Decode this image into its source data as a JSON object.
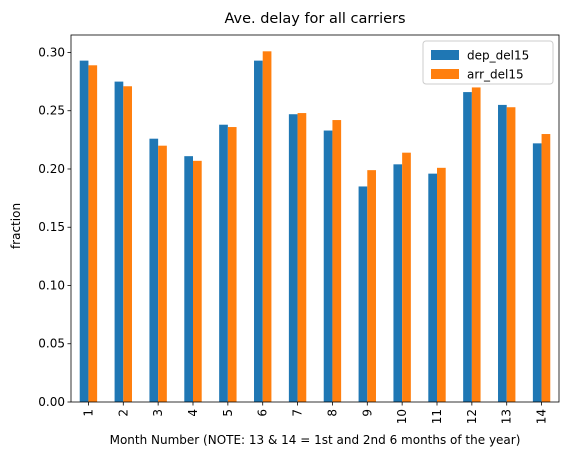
{
  "chart_data": {
    "type": "bar",
    "title": "Ave. delay for all carriers",
    "xlabel": "Month Number (NOTE: 13 & 14 = 1st and 2nd 6 months of the year)",
    "ylabel": "fraction",
    "categories": [
      "1",
      "2",
      "3",
      "4",
      "5",
      "6",
      "7",
      "8",
      "9",
      "10",
      "11",
      "12",
      "13",
      "14"
    ],
    "series": [
      {
        "name": "dep_del15",
        "color": "#1f77b4",
        "values": [
          0.293,
          0.275,
          0.226,
          0.211,
          0.238,
          0.293,
          0.247,
          0.233,
          0.185,
          0.204,
          0.196,
          0.266,
          0.255,
          0.222
        ]
      },
      {
        "name": "arr_del15",
        "color": "#ff7f0e",
        "values": [
          0.289,
          0.271,
          0.22,
          0.207,
          0.236,
          0.301,
          0.248,
          0.242,
          0.199,
          0.214,
          0.201,
          0.27,
          0.253,
          0.23
        ]
      }
    ],
    "ylim": [
      0,
      0.315
    ],
    "yticks": [
      "0.00",
      "0.05",
      "0.10",
      "0.15",
      "0.20",
      "0.25",
      "0.30"
    ],
    "ytick_values": [
      0,
      0.05,
      0.1,
      0.15,
      0.2,
      0.25,
      0.3
    ],
    "grid": false,
    "legend_position": "top-right"
  }
}
